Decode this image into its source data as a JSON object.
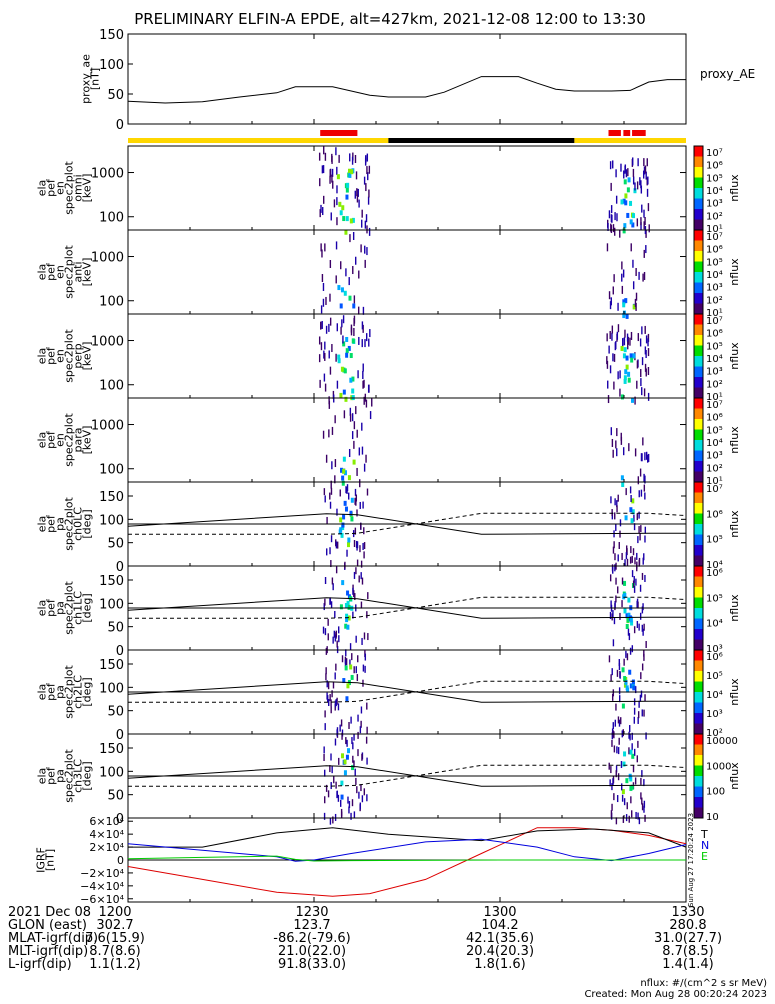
{
  "title": "PRELIMINARY ELFIN-A EPDE, alt=427km, 2021-12-08 12:00 to 13:30",
  "colors": {
    "flag_yellow": "#ffd700",
    "flag_black": "#000000",
    "flag_red": "#ee0000",
    "grf_t": "#000000",
    "grf_n": "#0000dd",
    "grf_e": "#00cc00",
    "grf_extra": "#dd0000"
  },
  "panels": {
    "proxy_ae": {
      "ylabel": [
        "proxy_ae",
        "[nT]"
      ],
      "yticks": [
        "150",
        "100",
        "50",
        "0"
      ],
      "legend": "proxy_AE"
    },
    "spectra": [
      {
        "ylabel": [
          "ela",
          "pef",
          "en",
          "spec2plot",
          "omni",
          "[keV]"
        ],
        "yticks": [
          "1000",
          "100"
        ],
        "cbar_ticks": [
          "10⁷",
          "10⁶",
          "10⁵",
          "10⁴",
          "10³",
          "10²",
          "10¹"
        ],
        "cbar_label": "nflux"
      },
      {
        "ylabel": [
          "ela",
          "pef",
          "en",
          "spec2plot",
          "anti",
          "[keV]"
        ],
        "yticks": [
          "1000",
          "100"
        ],
        "cbar_ticks": [
          "10⁷",
          "10⁶",
          "10⁵",
          "10⁴",
          "10³",
          "10²",
          "10¹"
        ],
        "cbar_label": "nflux"
      },
      {
        "ylabel": [
          "ela",
          "pef",
          "en",
          "spec2plot",
          "perp",
          "[keV]"
        ],
        "yticks": [
          "1000",
          "100"
        ],
        "cbar_ticks": [
          "10⁷",
          "10⁶",
          "10⁵",
          "10⁴",
          "10³",
          "10²",
          "10¹"
        ],
        "cbar_label": "nflux"
      },
      {
        "ylabel": [
          "ela",
          "pef",
          "en",
          "spec2plot",
          "para",
          "[keV]"
        ],
        "yticks": [
          "1000",
          "100"
        ],
        "cbar_ticks": [
          "10⁷",
          "10⁶",
          "10⁵",
          "10⁴",
          "10³",
          "10²",
          "10¹"
        ],
        "cbar_label": "nflux"
      }
    ],
    "pitch": [
      {
        "ylabel": [
          "ela",
          "pef",
          "pa",
          "spec2plot",
          "ch0LC",
          "[deg]"
        ],
        "yticks": [
          "150",
          "100",
          "50",
          "0"
        ],
        "cbar_ticks": [
          "10⁷",
          "10⁶",
          "10⁵",
          "10⁴"
        ],
        "cbar_label": "nflux"
      },
      {
        "ylabel": [
          "ela",
          "pef",
          "pa",
          "spec2plot",
          "ch1LC",
          "[deg]"
        ],
        "yticks": [
          "150",
          "100",
          "50",
          "0"
        ],
        "cbar_ticks": [
          "10⁶",
          "10⁵",
          "10⁴",
          "10³"
        ],
        "cbar_label": "nflux"
      },
      {
        "ylabel": [
          "ela",
          "pef",
          "pa",
          "spec2plot",
          "ch2LC",
          "[deg]"
        ],
        "yticks": [
          "150",
          "100",
          "50",
          "0"
        ],
        "cbar_ticks": [
          "10⁶",
          "10⁵",
          "10⁴",
          "10³",
          "10²"
        ],
        "cbar_label": "nflux"
      },
      {
        "ylabel": [
          "ela",
          "pef",
          "pa",
          "spec2plot",
          "ch3LC",
          "[deg]"
        ],
        "yticks": [
          "150",
          "100",
          "50",
          "0"
        ],
        "cbar_ticks": [
          "10000",
          "1000",
          "100",
          "10"
        ],
        "cbar_label": "nflux"
      }
    ],
    "grf": {
      "ylabel": [
        "IGRF",
        "[nT]"
      ],
      "yticks": [
        "6×10⁴",
        "4×10⁴",
        "2×10⁴",
        "0",
        "−2×10⁴",
        "−4×10⁴",
        "−6×10⁴"
      ],
      "legend": [
        "T",
        "N",
        "E"
      ]
    }
  },
  "chart_data": {
    "type": "line",
    "x_domain_minutes": [
      0,
      90
    ],
    "proxy_ae": {
      "ylim": [
        0,
        150
      ],
      "x": [
        0,
        6,
        12,
        18,
        24,
        27,
        33,
        36,
        39,
        42,
        48,
        51,
        57,
        63,
        66,
        69,
        72,
        75,
        78,
        81,
        84,
        87,
        90
      ],
      "values": [
        38,
        35,
        37,
        45,
        52,
        62,
        62,
        55,
        48,
        45,
        45,
        53,
        79,
        79,
        68,
        58,
        55,
        55,
        55,
        56,
        70,
        74,
        74
      ]
    },
    "flag_bar": [
      {
        "start": 0,
        "end": 42,
        "color": "yellow"
      },
      {
        "start": 42,
        "end": 72,
        "color": "black"
      },
      {
        "start": 72,
        "end": 90,
        "color": "yellow"
      }
    ],
    "flag_red": [
      [
        31,
        37
      ],
      [
        77.5,
        79.5
      ],
      [
        79.9,
        81
      ],
      [
        81.3,
        83.5
      ]
    ],
    "spectra": {
      "ylim_log": [
        1.7,
        3.6
      ],
      "bursts": [
        {
          "center": 35,
          "width": 6,
          "peak_energy_log": 3.0
        },
        {
          "center": 80.5,
          "width": 5,
          "peak_energy_log": 2.8
        }
      ]
    },
    "pitch_angle_lines": {
      "ylim": [
        0,
        180
      ],
      "solid_lc": {
        "x": [
          0,
          32,
          37,
          57,
          84,
          90
        ],
        "y": [
          85,
          112,
          110,
          68,
          70,
          70
        ]
      },
      "dashed_antilc": {
        "x": [
          0,
          32,
          37,
          57,
          84,
          90
        ],
        "y": [
          68,
          68,
          70,
          113,
          113,
          108
        ]
      },
      "reference_90": 90
    },
    "igrf": {
      "ylim": [
        -65000,
        65000
      ],
      "T": {
        "x": [
          0,
          12,
          24,
          33,
          42,
          57,
          66,
          75,
          84,
          90
        ],
        "y": [
          20000,
          20000,
          42000,
          50000,
          40000,
          30000,
          45000,
          48000,
          42000,
          20000
        ]
      },
      "N": {
        "x": [
          0,
          12,
          24,
          27,
          30,
          36,
          48,
          57,
          66,
          72,
          78,
          84,
          90
        ],
        "y": [
          25000,
          15000,
          5000,
          -2000,
          0,
          10000,
          28000,
          32000,
          20000,
          5000,
          -1000,
          10000,
          24000
        ]
      },
      "E": {
        "x": [
          0,
          12,
          24,
          27,
          30,
          36,
          60,
          90
        ],
        "y": [
          2000,
          4000,
          6000,
          1000,
          -1500,
          -1000,
          0,
          0
        ]
      },
      "extra": {
        "x": [
          0,
          12,
          24,
          33,
          39,
          48,
          57,
          66,
          72,
          78,
          84,
          90
        ],
        "y": [
          -10000,
          -30000,
          -50000,
          -56000,
          -52000,
          -30000,
          10000,
          50000,
          50000,
          46000,
          38000,
          25000
        ]
      }
    }
  },
  "axis_labels": {
    "ticks": [
      "1200",
      "1230",
      "1300",
      "1330"
    ]
  },
  "footer": {
    "rows": [
      {
        "label": "2021 Dec 08",
        "values": [
          "1200",
          "1230",
          "1300",
          "1330"
        ]
      },
      {
        "label": "GLON (east)",
        "values": [
          "302.7",
          "123.7",
          "104.2",
          "280.8"
        ]
      },
      {
        "label": "MLAT-igrf(dip)",
        "values": [
          "7.6(15.9)",
          "-86.2(-79.6)",
          "42.1(35.6)",
          "31.0(27.7)"
        ]
      },
      {
        "label": "MLT-igrf(dip)",
        "values": [
          "8.7(8.6)",
          "21.0(22.0)",
          "20.4(20.3)",
          "8.7(8.5)"
        ]
      },
      {
        "label": "L-igrf(dip)",
        "values": [
          "1.1(1.2)",
          "91.8(33.0)",
          "1.8(1.6)",
          "1.4(1.4)"
        ]
      }
    ],
    "units_note": "nflux: #/(cm^2 s sr MeV)",
    "created": "Created: Mon Aug 28 00:20:24 2023",
    "side_stamp": "Sun Aug 27 17:20:24 2023"
  }
}
